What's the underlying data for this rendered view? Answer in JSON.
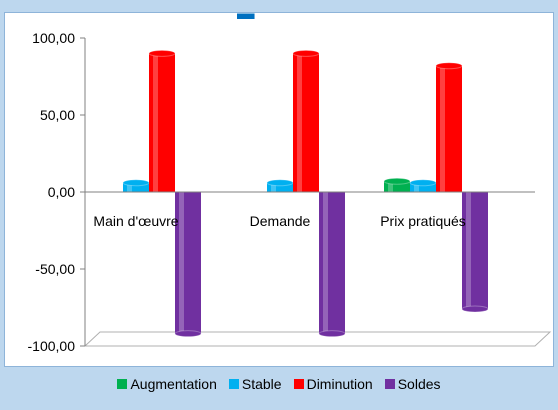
{
  "chart_data": {
    "type": "bar",
    "categories": [
      "Main d'œuvre",
      "Demande",
      "Prix pratiqués"
    ],
    "series": [
      {
        "name": "Augmentation",
        "values": [
          0,
          0,
          7
        ],
        "color": "#00b050"
      },
      {
        "name": "Stable",
        "values": [
          6,
          6,
          6
        ],
        "color": "#00b0f0"
      },
      {
        "name": "Diminution",
        "values": [
          90,
          90,
          82
        ],
        "color": "#ff0000"
      },
      {
        "name": "Soldes",
        "values": [
          -92,
          -92,
          -76
        ],
        "color": "#7030a0"
      }
    ],
    "y_ticks": [
      "100,00",
      "50,00",
      "0,00",
      "-50,00",
      "-100,00"
    ],
    "ylim": [
      -100,
      100
    ],
    "grid": false,
    "legend": "bottom",
    "title": ""
  }
}
